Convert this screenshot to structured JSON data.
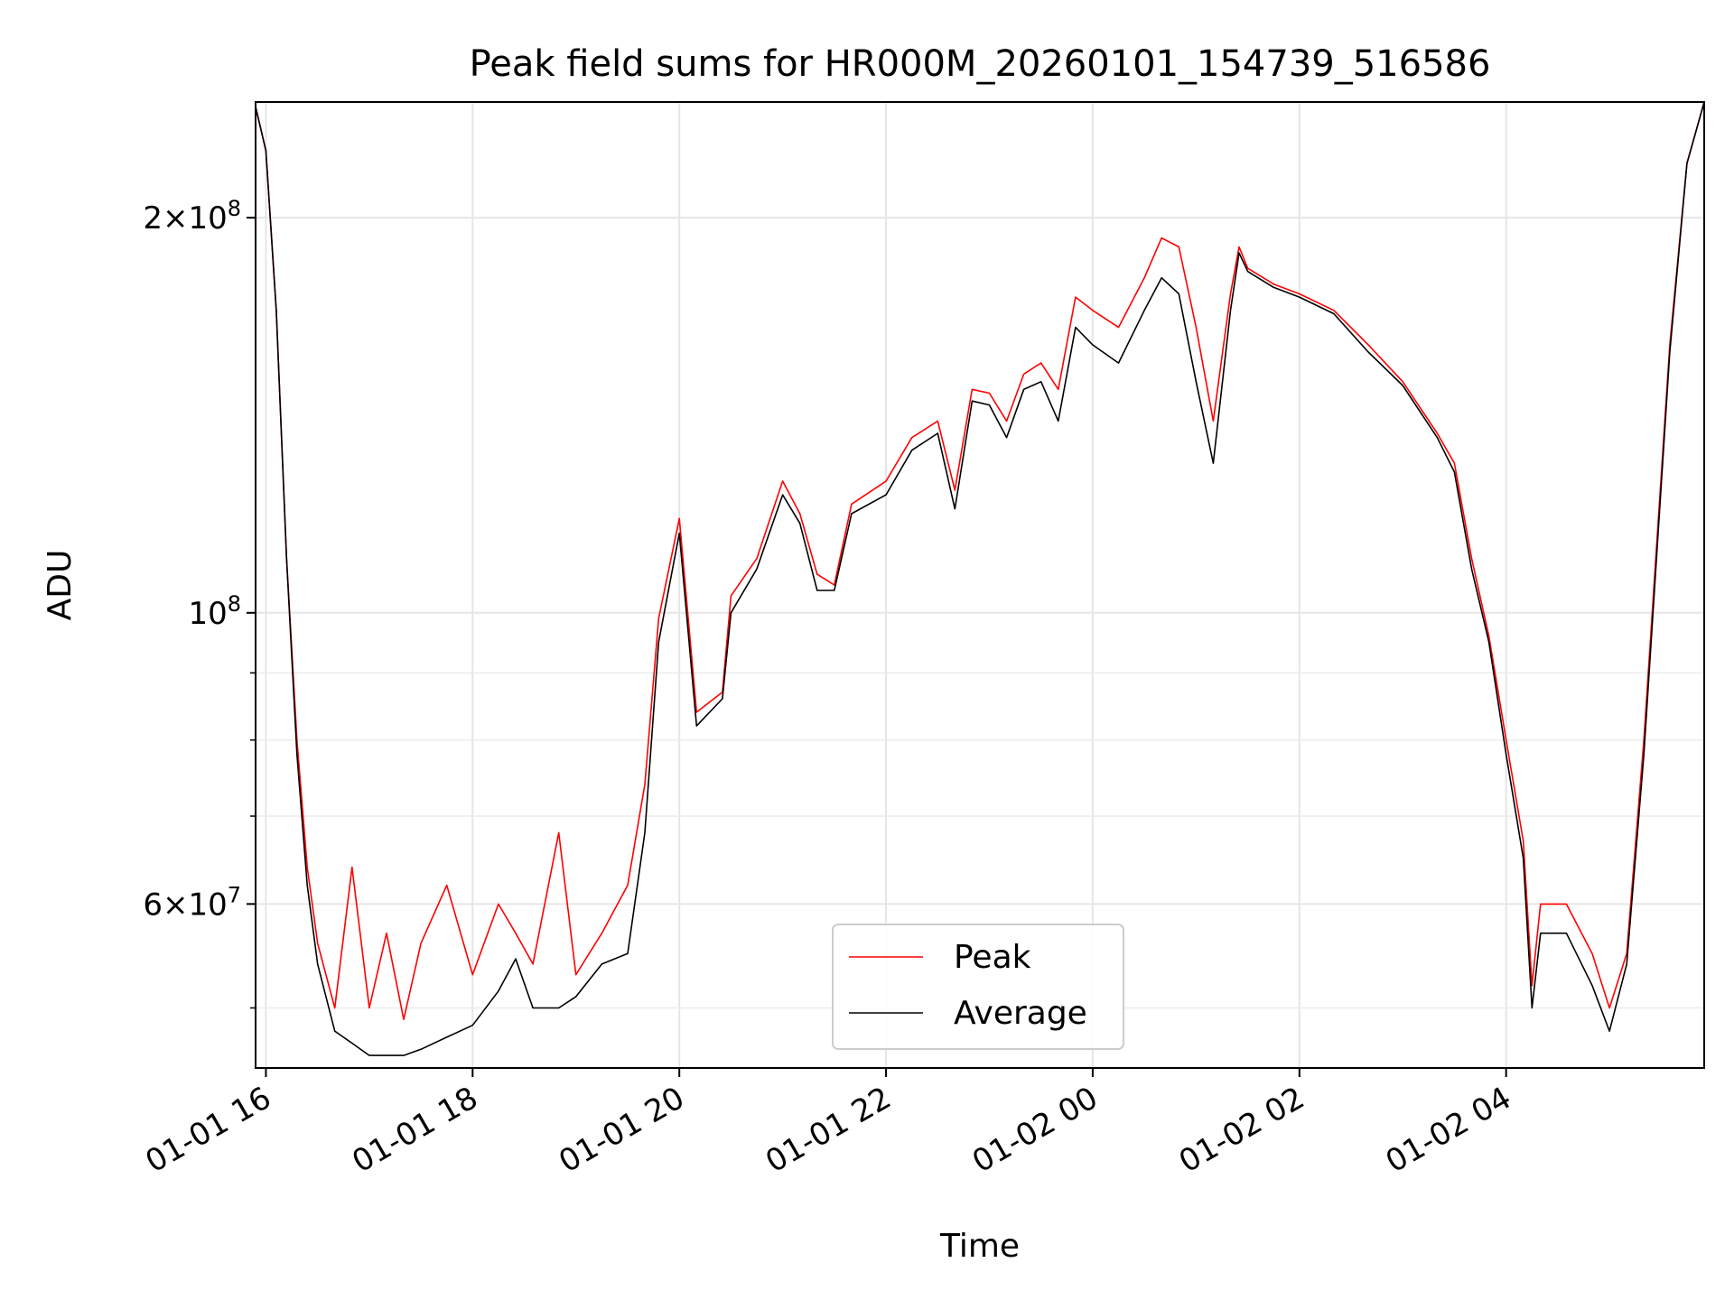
{
  "chart_data": {
    "type": "line",
    "title": "Peak field sums for HR000M_20260101_154739_516586",
    "xlabel": "Time",
    "ylabel": "ADU",
    "y_scale": "log",
    "grid": true,
    "legend_placement": "lower center",
    "xlim": [
      "2026-01-01 15:54",
      "2026-01-02 05:55"
    ],
    "ylim": [
      45000000,
      245000000
    ],
    "x_ticks": [
      {
        "time": "2026-01-01 16:00",
        "label": "01-01 16"
      },
      {
        "time": "2026-01-01 18:00",
        "label": "01-01 18"
      },
      {
        "time": "2026-01-01 20:00",
        "label": "01-01 20"
      },
      {
        "time": "2026-01-01 22:00",
        "label": "01-01 22"
      },
      {
        "time": "2026-01-02 00:00",
        "label": "01-02 00"
      },
      {
        "time": "2026-01-02 02:00",
        "label": "01-02 02"
      },
      {
        "time": "2026-01-02 04:00",
        "label": "01-02 04"
      }
    ],
    "y_major_ticks": [
      {
        "value": 60000000,
        "mant": "6",
        "exp": "7"
      },
      {
        "value": 100000000,
        "mant": "",
        "exp": "8"
      },
      {
        "value": 200000000,
        "mant": "2",
        "exp": "8"
      }
    ],
    "y_minor_ticks": [
      50000000,
      70000000,
      80000000,
      90000000
    ],
    "series": [
      {
        "name": "Peak",
        "color": "#ff0000",
        "points": [
          [
            "2026-01-01 15:54",
            243000000
          ],
          [
            "2026-01-01 16:00",
            225000000
          ],
          [
            "2026-01-01 16:06",
            170000000
          ],
          [
            "2026-01-01 16:12",
            110000000
          ],
          [
            "2026-01-01 16:18",
            80000000
          ],
          [
            "2026-01-01 16:24",
            64000000
          ],
          [
            "2026-01-01 16:30",
            56000000
          ],
          [
            "2026-01-01 16:40",
            50000000
          ],
          [
            "2026-01-01 16:50",
            64000000
          ],
          [
            "2026-01-01 17:00",
            50000000
          ],
          [
            "2026-01-01 17:10",
            57000000
          ],
          [
            "2026-01-01 17:20",
            49000000
          ],
          [
            "2026-01-01 17:30",
            56000000
          ],
          [
            "2026-01-01 17:45",
            62000000
          ],
          [
            "2026-01-01 18:00",
            53000000
          ],
          [
            "2026-01-01 18:15",
            60000000
          ],
          [
            "2026-01-01 18:25",
            57000000
          ],
          [
            "2026-01-01 18:35",
            54000000
          ],
          [
            "2026-01-01 18:50",
            68000000
          ],
          [
            "2026-01-01 19:00",
            53000000
          ],
          [
            "2026-01-01 19:15",
            57000000
          ],
          [
            "2026-01-01 19:30",
            62000000
          ],
          [
            "2026-01-01 19:40",
            74000000
          ],
          [
            "2026-01-01 19:48",
            99000000
          ],
          [
            "2026-01-01 20:00",
            118000000
          ],
          [
            "2026-01-01 20:10",
            84000000
          ],
          [
            "2026-01-01 20:25",
            87000000
          ],
          [
            "2026-01-01 20:30",
            103000000
          ],
          [
            "2026-01-01 20:45",
            110000000
          ],
          [
            "2026-01-01 21:00",
            126000000
          ],
          [
            "2026-01-01 21:10",
            119000000
          ],
          [
            "2026-01-01 21:20",
            107000000
          ],
          [
            "2026-01-01 21:30",
            105000000
          ],
          [
            "2026-01-01 21:40",
            121000000
          ],
          [
            "2026-01-01 22:00",
            126000000
          ],
          [
            "2026-01-01 22:15",
            136000000
          ],
          [
            "2026-01-01 22:30",
            140000000
          ],
          [
            "2026-01-01 22:40",
            124000000
          ],
          [
            "2026-01-01 22:50",
            148000000
          ],
          [
            "2026-01-01 23:00",
            147000000
          ],
          [
            "2026-01-01 23:10",
            140000000
          ],
          [
            "2026-01-01 23:20",
            152000000
          ],
          [
            "2026-01-01 23:30",
            155000000
          ],
          [
            "2026-01-01 23:40",
            148000000
          ],
          [
            "2026-01-01 23:50",
            174000000
          ],
          [
            "2026-01-02 00:00",
            170000000
          ],
          [
            "2026-01-02 00:15",
            165000000
          ],
          [
            "2026-01-02 00:30",
            180000000
          ],
          [
            "2026-01-02 00:40",
            193000000
          ],
          [
            "2026-01-02 00:50",
            190000000
          ],
          [
            "2026-01-02 01:00",
            165000000
          ],
          [
            "2026-01-02 01:10",
            140000000
          ],
          [
            "2026-01-02 01:20",
            175000000
          ],
          [
            "2026-01-02 01:25",
            190000000
          ],
          [
            "2026-01-02 01:30",
            183000000
          ],
          [
            "2026-01-02 01:45",
            178000000
          ],
          [
            "2026-01-02 02:00",
            175000000
          ],
          [
            "2026-01-02 02:20",
            170000000
          ],
          [
            "2026-01-02 02:40",
            160000000
          ],
          [
            "2026-01-02 03:00",
            150000000
          ],
          [
            "2026-01-02 03:20",
            137000000
          ],
          [
            "2026-01-02 03:30",
            130000000
          ],
          [
            "2026-01-02 03:40",
            110000000
          ],
          [
            "2026-01-02 03:50",
            96000000
          ],
          [
            "2026-01-02 04:00",
            80000000
          ],
          [
            "2026-01-02 04:10",
            67000000
          ],
          [
            "2026-01-02 04:15",
            52000000
          ],
          [
            "2026-01-02 04:20",
            60000000
          ],
          [
            "2026-01-02 04:35",
            60000000
          ],
          [
            "2026-01-02 04:50",
            55000000
          ],
          [
            "2026-01-02 05:00",
            50000000
          ],
          [
            "2026-01-02 05:10",
            55000000
          ],
          [
            "2026-01-02 05:20",
            80000000
          ],
          [
            "2026-01-02 05:35",
            160000000
          ],
          [
            "2026-01-02 05:45",
            220000000
          ],
          [
            "2026-01-02 05:55",
            245000000
          ]
        ]
      },
      {
        "name": "Average",
        "color": "#000000",
        "points": [
          [
            "2026-01-01 15:54",
            243000000
          ],
          [
            "2026-01-01 16:00",
            225000000
          ],
          [
            "2026-01-01 16:06",
            170000000
          ],
          [
            "2026-01-01 16:12",
            110000000
          ],
          [
            "2026-01-01 16:18",
            78000000
          ],
          [
            "2026-01-01 16:24",
            62000000
          ],
          [
            "2026-01-01 16:30",
            54000000
          ],
          [
            "2026-01-01 16:40",
            48000000
          ],
          [
            "2026-01-01 16:50",
            47000000
          ],
          [
            "2026-01-01 17:00",
            46000000
          ],
          [
            "2026-01-01 17:10",
            46000000
          ],
          [
            "2026-01-01 17:20",
            46000000
          ],
          [
            "2026-01-01 17:30",
            46500000
          ],
          [
            "2026-01-01 17:45",
            47500000
          ],
          [
            "2026-01-01 18:00",
            48500000
          ],
          [
            "2026-01-01 18:15",
            51500000
          ],
          [
            "2026-01-01 18:25",
            54500000
          ],
          [
            "2026-01-01 18:35",
            50000000
          ],
          [
            "2026-01-01 18:50",
            50000000
          ],
          [
            "2026-01-01 19:00",
            51000000
          ],
          [
            "2026-01-01 19:15",
            54000000
          ],
          [
            "2026-01-01 19:30",
            55000000
          ],
          [
            "2026-01-01 19:40",
            68000000
          ],
          [
            "2026-01-01 19:48",
            95000000
          ],
          [
            "2026-01-01 20:00",
            115000000
          ],
          [
            "2026-01-01 20:10",
            82000000
          ],
          [
            "2026-01-01 20:25",
            86000000
          ],
          [
            "2026-01-01 20:30",
            100000000
          ],
          [
            "2026-01-01 20:45",
            108000000
          ],
          [
            "2026-01-01 21:00",
            123000000
          ],
          [
            "2026-01-01 21:10",
            117000000
          ],
          [
            "2026-01-01 21:20",
            104000000
          ],
          [
            "2026-01-01 21:30",
            104000000
          ],
          [
            "2026-01-01 21:40",
            119000000
          ],
          [
            "2026-01-01 22:00",
            123000000
          ],
          [
            "2026-01-01 22:15",
            133000000
          ],
          [
            "2026-01-01 22:30",
            137000000
          ],
          [
            "2026-01-01 22:40",
            120000000
          ],
          [
            "2026-01-01 22:50",
            145000000
          ],
          [
            "2026-01-01 23:00",
            144000000
          ],
          [
            "2026-01-01 23:10",
            136000000
          ],
          [
            "2026-01-01 23:20",
            148000000
          ],
          [
            "2026-01-01 23:30",
            150000000
          ],
          [
            "2026-01-01 23:40",
            140000000
          ],
          [
            "2026-01-01 23:50",
            165000000
          ],
          [
            "2026-01-02 00:00",
            160000000
          ],
          [
            "2026-01-02 00:15",
            155000000
          ],
          [
            "2026-01-02 00:30",
            170000000
          ],
          [
            "2026-01-02 00:40",
            180000000
          ],
          [
            "2026-01-02 00:50",
            175000000
          ],
          [
            "2026-01-02 01:00",
            150000000
          ],
          [
            "2026-01-02 01:10",
            130000000
          ],
          [
            "2026-01-02 01:20",
            170000000
          ],
          [
            "2026-01-02 01:25",
            188000000
          ],
          [
            "2026-01-02 01:30",
            182000000
          ],
          [
            "2026-01-02 01:45",
            177000000
          ],
          [
            "2026-01-02 02:00",
            174000000
          ],
          [
            "2026-01-02 02:20",
            169000000
          ],
          [
            "2026-01-02 02:40",
            158000000
          ],
          [
            "2026-01-02 03:00",
            149000000
          ],
          [
            "2026-01-02 03:20",
            136000000
          ],
          [
            "2026-01-02 03:30",
            128000000
          ],
          [
            "2026-01-02 03:40",
            108000000
          ],
          [
            "2026-01-02 03:50",
            95000000
          ],
          [
            "2026-01-02 04:00",
            78000000
          ],
          [
            "2026-01-02 04:10",
            65000000
          ],
          [
            "2026-01-02 04:15",
            50000000
          ],
          [
            "2026-01-02 04:20",
            57000000
          ],
          [
            "2026-01-02 04:35",
            57000000
          ],
          [
            "2026-01-02 04:50",
            52000000
          ],
          [
            "2026-01-02 05:00",
            48000000
          ],
          [
            "2026-01-02 05:10",
            54000000
          ],
          [
            "2026-01-02 05:20",
            78000000
          ],
          [
            "2026-01-02 05:35",
            158000000
          ],
          [
            "2026-01-02 05:45",
            220000000
          ],
          [
            "2026-01-02 05:55",
            245000000
          ]
        ]
      }
    ]
  }
}
